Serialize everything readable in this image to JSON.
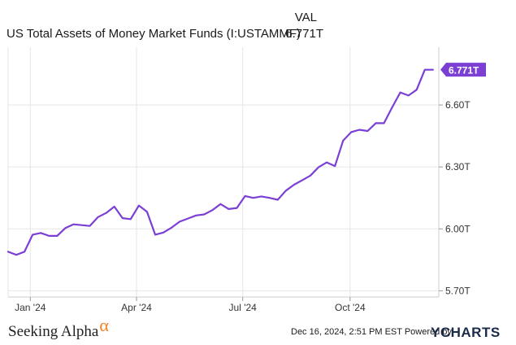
{
  "header": {
    "val_heading": "VAL",
    "series_name": "US Total Assets of Money Market Funds (I:USTAMMF)",
    "series_value": "6.771T"
  },
  "footer": {
    "timestamp": "Dec 16, 2024, 2:51 PM EST",
    "powered_by": "Powered by",
    "ycharts_brand_y": "Y",
    "ycharts_brand_rest": "CHARTS",
    "seeking_alpha": "Seeking Alpha",
    "seeking_alpha_symbol": "α"
  },
  "colors": {
    "line": "#7b3fd4",
    "grid": "#e6e6e6",
    "axis_text": "#333333",
    "callout_bg": "#7b3fd4"
  },
  "chart_data": {
    "type": "line",
    "series": [
      {
        "name": "US Total Assets of Money Market Funds (I:USTAMMF)",
        "x": [
          "2023-12-13",
          "2023-12-20",
          "2023-12-27",
          "2024-01-03",
          "2024-01-10",
          "2024-01-17",
          "2024-01-24",
          "2024-01-31",
          "2024-02-07",
          "2024-02-14",
          "2024-02-21",
          "2024-02-28",
          "2024-03-06",
          "2024-03-13",
          "2024-03-20",
          "2024-03-27",
          "2024-04-03",
          "2024-04-10",
          "2024-04-17",
          "2024-04-24",
          "2024-05-01",
          "2024-05-08",
          "2024-05-15",
          "2024-05-22",
          "2024-05-29",
          "2024-06-05",
          "2024-06-12",
          "2024-06-19",
          "2024-06-26",
          "2024-07-03",
          "2024-07-10",
          "2024-07-17",
          "2024-07-24",
          "2024-07-31",
          "2024-08-07",
          "2024-08-14",
          "2024-08-21",
          "2024-08-28",
          "2024-09-04",
          "2024-09-11",
          "2024-09-18",
          "2024-09-25",
          "2024-10-02",
          "2024-10-09",
          "2024-10-16",
          "2024-10-23",
          "2024-10-30",
          "2024-11-06",
          "2024-11-13",
          "2024-11-20",
          "2024-11-27",
          "2024-12-04",
          "2024-12-11"
        ],
        "y": [
          5.889,
          5.874,
          5.889,
          5.972,
          5.98,
          5.966,
          5.966,
          6.004,
          6.022,
          6.018,
          6.014,
          6.057,
          6.077,
          6.108,
          6.052,
          6.047,
          6.113,
          6.083,
          5.972,
          5.982,
          6.006,
          6.035,
          6.05,
          6.065,
          6.07,
          6.091,
          6.12,
          6.096,
          6.101,
          6.159,
          6.15,
          6.157,
          6.15,
          6.141,
          6.185,
          6.214,
          6.236,
          6.258,
          6.299,
          6.322,
          6.304,
          6.427,
          6.469,
          6.48,
          6.474,
          6.512,
          6.512,
          6.588,
          6.661,
          6.646,
          6.674,
          6.771,
          6.771
        ]
      }
    ],
    "title": "",
    "xlabel": "",
    "ylabel": "",
    "x_ticks": [
      "Jan '24",
      "Apr '24",
      "Jul '24",
      "Oct '24"
    ],
    "x_tick_dates": [
      "2024-01-01",
      "2024-04-01",
      "2024-07-01",
      "2024-10-01"
    ],
    "y_ticks": [
      "5.70T",
      "6.00T",
      "6.30T",
      "6.60T"
    ],
    "y_tick_values": [
      5.7,
      6.0,
      6.3,
      6.6
    ],
    "ylim": [
      5.67,
      6.88
    ],
    "xlim": [
      "2023-12-13",
      "2024-12-16"
    ],
    "last_value_label": "6.771T",
    "grid": true,
    "y_axis_side": "right"
  }
}
